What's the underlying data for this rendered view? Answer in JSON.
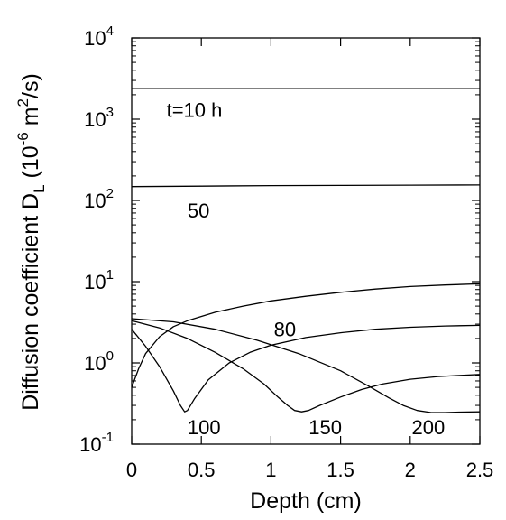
{
  "chart_data": {
    "type": "line",
    "xlabel": "Depth (cm)",
    "ylabel": {
      "main": "Diffusion coefficient D",
      "sub": "L",
      "open": " (10",
      "exp": "-6",
      "unit": " m",
      "unit_exp": "2",
      "close": "/s)"
    },
    "xlim": [
      0,
      2.5
    ],
    "ylim": [
      0.1,
      10000
    ],
    "yscale": "log",
    "grid": false,
    "x_ticks": [
      {
        "value": 0,
        "label": "0"
      },
      {
        "value": 0.5,
        "label": "0.5"
      },
      {
        "value": 1,
        "label": "1"
      },
      {
        "value": 1.5,
        "label": "1.5"
      },
      {
        "value": 2,
        "label": "2"
      },
      {
        "value": 2.5,
        "label": "2.5"
      }
    ],
    "y_ticks": [
      {
        "value": 0.1,
        "base": "10",
        "exp": "-1"
      },
      {
        "value": 1,
        "base": "10",
        "exp": "0"
      },
      {
        "value": 10,
        "base": "10",
        "exp": "1"
      },
      {
        "value": 100,
        "base": "10",
        "exp": "2"
      },
      {
        "value": 1000,
        "base": "10",
        "exp": "3"
      },
      {
        "value": 10000,
        "base": "10",
        "exp": "4"
      }
    ],
    "series": [
      {
        "name": "t=10 h",
        "label_at": [
          0.45,
          1300
        ],
        "x": [
          0,
          0.5,
          1.0,
          1.5,
          2.0,
          2.5
        ],
        "y": [
          2400,
          2400,
          2400,
          2400,
          2400,
          2400
        ]
      },
      {
        "name": "50",
        "label_at": [
          0.48,
          75
        ],
        "x": [
          0,
          0.5,
          1.0,
          1.5,
          2.0,
          2.5
        ],
        "y": [
          148,
          150,
          152,
          153,
          154,
          155
        ]
      },
      {
        "name": "80",
        "label_at": [
          1.1,
          2.6
        ],
        "x": [
          0,
          0.05,
          0.1,
          0.2,
          0.3,
          0.4,
          0.6,
          0.8,
          1.0,
          1.25,
          1.5,
          1.75,
          2.0,
          2.25,
          2.5
        ],
        "y": [
          0.5,
          0.85,
          1.3,
          2.1,
          2.8,
          3.3,
          4.2,
          5.0,
          5.8,
          6.6,
          7.4,
          8.1,
          8.7,
          9.1,
          9.4
        ]
      },
      {
        "name": "100",
        "x": [
          0,
          0.1,
          0.2,
          0.3,
          0.35,
          0.38,
          0.4,
          0.45,
          0.55,
          0.7,
          0.85,
          1.0,
          1.25,
          1.5,
          1.75,
          2.0,
          2.25,
          2.5
        ],
        "y": [
          2.6,
          1.6,
          0.9,
          0.45,
          0.3,
          0.25,
          0.26,
          0.36,
          0.62,
          1.0,
          1.35,
          1.65,
          2.05,
          2.35,
          2.6,
          2.75,
          2.85,
          2.9
        ]
      },
      {
        "name": "150",
        "x": [
          0,
          0.2,
          0.4,
          0.6,
          0.8,
          0.95,
          1.05,
          1.12,
          1.17,
          1.22,
          1.27,
          1.35,
          1.5,
          1.65,
          1.8,
          2.0,
          2.2,
          2.35,
          2.5
        ],
        "y": [
          3.3,
          2.7,
          2.0,
          1.35,
          0.85,
          0.55,
          0.38,
          0.3,
          0.26,
          0.25,
          0.26,
          0.3,
          0.38,
          0.47,
          0.55,
          0.63,
          0.68,
          0.7,
          0.72
        ]
      },
      {
        "name": "200",
        "x": [
          0,
          0.3,
          0.6,
          0.9,
          1.2,
          1.5,
          1.7,
          1.85,
          1.95,
          2.05,
          2.15,
          2.25,
          2.35,
          2.5
        ],
        "y": [
          3.5,
          3.2,
          2.6,
          1.9,
          1.3,
          0.8,
          0.52,
          0.37,
          0.3,
          0.26,
          0.245,
          0.245,
          0.248,
          0.25
        ]
      }
    ],
    "annotations": [
      {
        "text": "100",
        "x": 0.52,
        "y": 0.162
      },
      {
        "text": "150",
        "x": 1.39,
        "y": 0.162
      },
      {
        "text": "200",
        "x": 2.13,
        "y": 0.162
      }
    ]
  }
}
